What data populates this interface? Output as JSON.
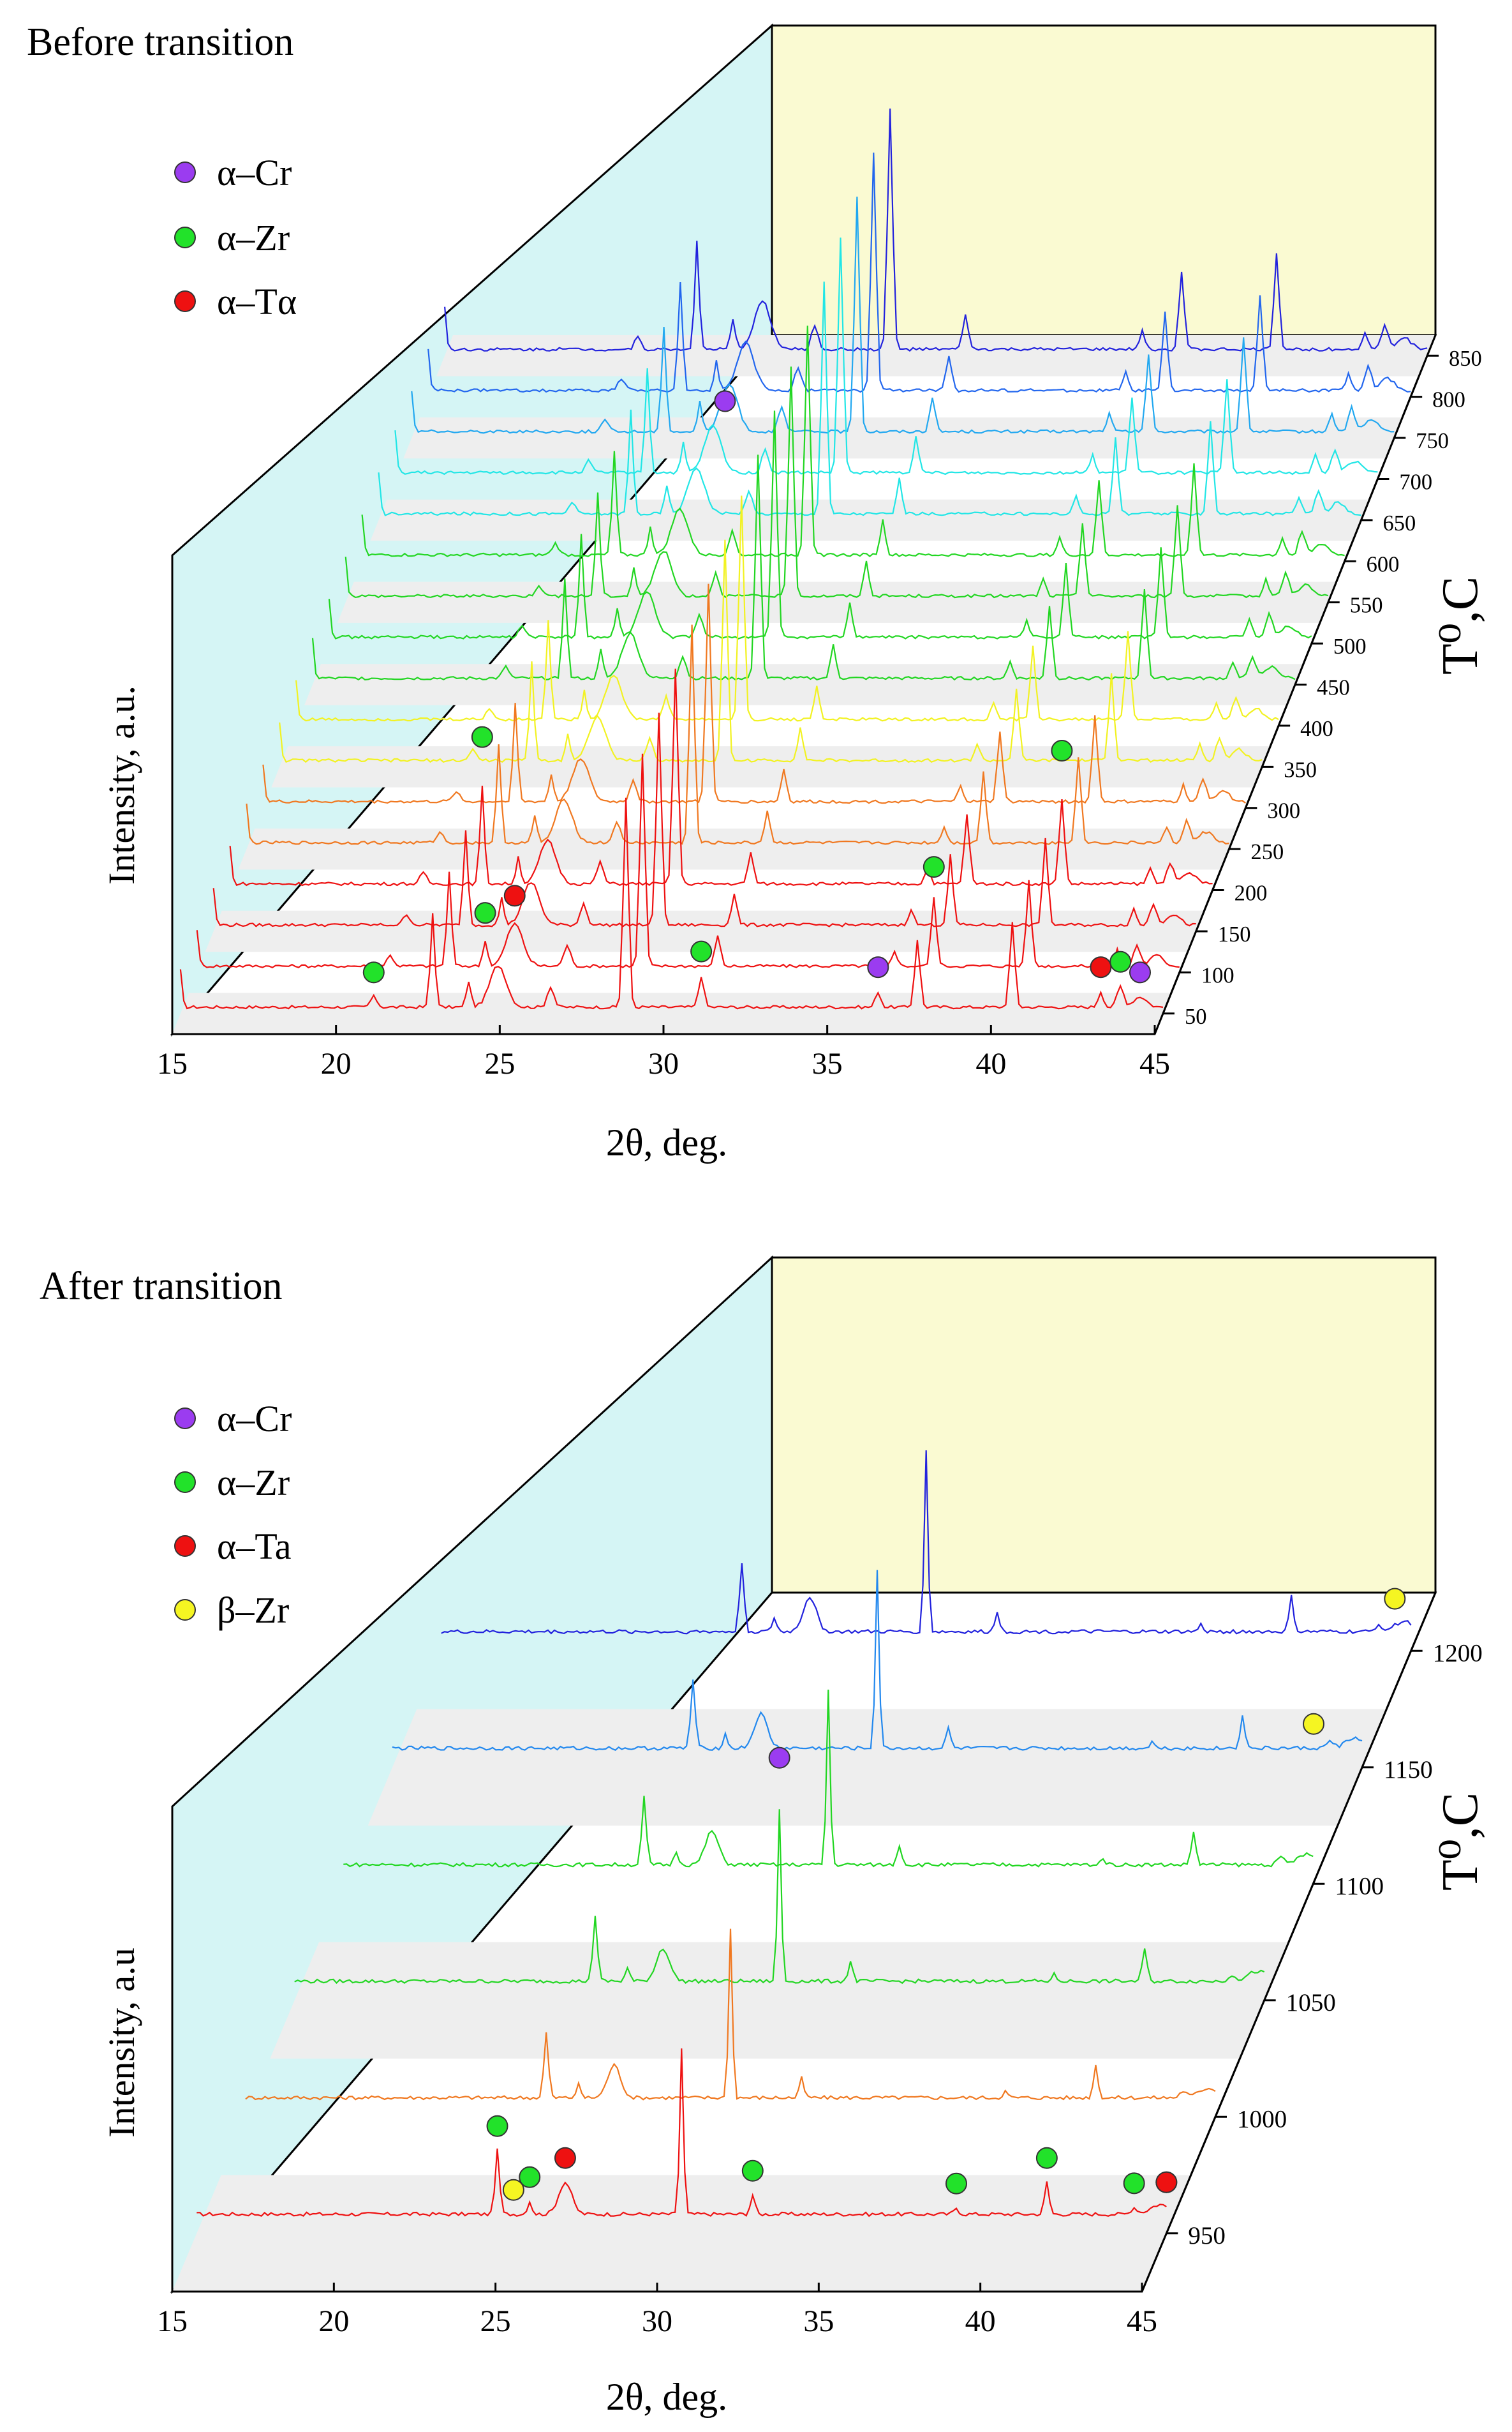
{
  "panels": [
    {
      "title": "Before transition",
      "legend": [
        {
          "label": "α–Cr",
          "color": "#9b3cf0"
        },
        {
          "label": "α–Zr",
          "color": "#22e22a"
        },
        {
          "label": "α–Tα",
          "color": "#ee1111"
        }
      ],
      "xlabel": "2θ, deg.",
      "ylabel": "Intensity, a.u.",
      "zlabel": "T⁰,C",
      "xticks": [
        15,
        20,
        25,
        30,
        35,
        40,
        45
      ],
      "temps": [
        50,
        100,
        150,
        200,
        250,
        300,
        350,
        400,
        450,
        500,
        550,
        600,
        650,
        700,
        750,
        800,
        850
      ],
      "colors": [
        "#ee1111",
        "#ee1111",
        "#ee1111",
        "#ee1111",
        "#f07820",
        "#f07820",
        "#f2f222",
        "#f2f222",
        "#22d622",
        "#22d622",
        "#22d622",
        "#22d622",
        "#22e6e6",
        "#22e6e6",
        "#22a8f0",
        "#2266ee",
        "#2222dd"
      ]
    },
    {
      "title": "After transition",
      "legend": [
        {
          "label": "α–Cr",
          "color": "#9b3cf0"
        },
        {
          "label": "α–Zr",
          "color": "#22e22a"
        },
        {
          "label": "α–Ta",
          "color": "#ee1111"
        },
        {
          "label": "β–Zr",
          "color": "#f5f522"
        }
      ],
      "xlabel": "2θ, deg.",
      "ylabel": "Intensity, a.u",
      "zlabel": "T⁰,C",
      "xticks": [
        15,
        20,
        25,
        30,
        35,
        40,
        45
      ],
      "temps": [
        950,
        1000,
        1050,
        1100,
        1150,
        1200
      ],
      "colors": [
        "#ee1111",
        "#f07820",
        "#22d622",
        "#22d622",
        "#2288ee",
        "#2222dd"
      ]
    }
  ],
  "chart_data": [
    {
      "type": "3d-waterfall-line",
      "title": "Before transition",
      "xlabel": "2θ, deg.",
      "ylabel": "Intensity, a.u.",
      "zlabel": "T⁰,C",
      "xlim": [
        15,
        45
      ],
      "series_by_temperature": [
        50,
        100,
        150,
        200,
        250,
        300,
        350,
        400,
        450,
        500,
        550,
        600,
        650,
        700,
        750,
        800,
        850
      ],
      "peaks_2theta": [
        15,
        20.9,
        22.7,
        23.8,
        24.7,
        26.3,
        28.6,
        30.9,
        36.3,
        37.5,
        40.4,
        43.1,
        43.7,
        44.3
      ],
      "markers": [
        {
          "phase": "α–Cr",
          "x": 28.6,
          "temp": 350
        },
        {
          "phase": "α–Cr",
          "x": 36.3,
          "temp": 50
        },
        {
          "phase": "α–Cr",
          "x": 44.3,
          "temp": 50
        },
        {
          "phase": "α–Zr",
          "x": 20.9,
          "temp": 50
        },
        {
          "phase": "α–Zr",
          "x": 22.7,
          "temp": 200
        },
        {
          "phase": "α–Zr",
          "x": 23.8,
          "temp": 100
        },
        {
          "phase": "α–Zr",
          "x": 30.9,
          "temp": 50
        },
        {
          "phase": "α–Zr",
          "x": 37.5,
          "temp": 100
        },
        {
          "phase": "α–Zr",
          "x": 40.4,
          "temp": 200
        },
        {
          "phase": "α–Zr",
          "x": 43.7,
          "temp": 50
        },
        {
          "phase": "α–Tα",
          "x": 24.7,
          "temp": 100
        },
        {
          "phase": "α–Tα",
          "x": 43.1,
          "temp": 50
        }
      ]
    },
    {
      "type": "3d-waterfall-line",
      "title": "After transition",
      "xlabel": "2θ, deg.",
      "ylabel": "Intensity, a.u",
      "zlabel": "T⁰,C",
      "xlim": [
        15,
        45
      ],
      "series_by_temperature": [
        950,
        1000,
        1050,
        1100,
        1150,
        1200
      ],
      "peaks_2theta": [
        24.3,
        25.3,
        26.4,
        30.0,
        32.2,
        38.5,
        41.3,
        44.0,
        44.8
      ],
      "markers": [
        {
          "phase": "α–Cr",
          "x": 30.0,
          "temp": 1050
        },
        {
          "phase": "α–Cr",
          "x": 45.0,
          "temp": 950
        },
        {
          "phase": "α–Zr",
          "x": 24.3,
          "temp": 950
        },
        {
          "phase": "α–Zr",
          "x": 25.3,
          "temp": 950
        },
        {
          "phase": "α–Zr",
          "x": 32.2,
          "temp": 950
        },
        {
          "phase": "α–Zr",
          "x": 38.5,
          "temp": 950
        },
        {
          "phase": "α–Zr",
          "x": 41.3,
          "temp": 950
        },
        {
          "phase": "α–Zr",
          "x": 44.0,
          "temp": 950
        },
        {
          "phase": "α–Ta",
          "x": 26.4,
          "temp": 950
        },
        {
          "phase": "α–Ta",
          "x": 45.0,
          "temp": 950
        },
        {
          "phase": "β–Zr",
          "x": 24.8,
          "temp": 950
        },
        {
          "phase": "β–Zr",
          "x": 43.5,
          "temp": 1150
        },
        {
          "phase": "β–Zr",
          "x": 44.5,
          "temp": 1200
        }
      ]
    }
  ]
}
